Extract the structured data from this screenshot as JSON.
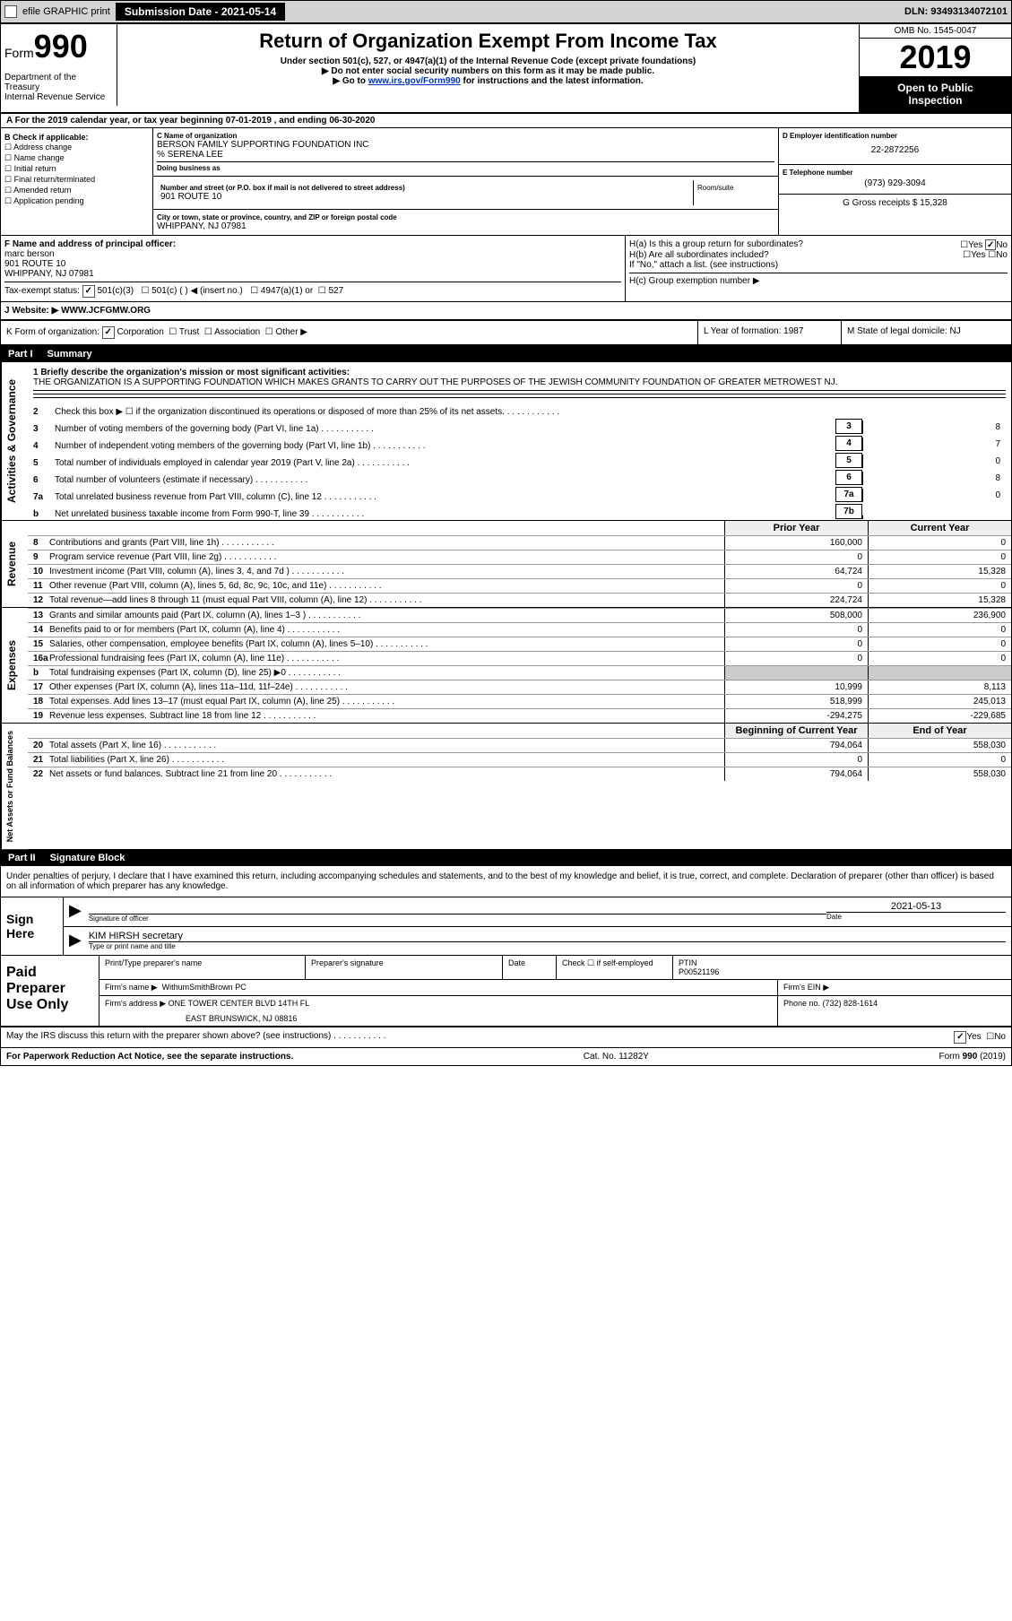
{
  "topbar": {
    "efile": "efile GRAPHIC print",
    "submission_label": "Submission Date - 2021-05-14",
    "dln": "DLN: 93493134072101"
  },
  "header": {
    "form_word": "Form",
    "form_no": "990",
    "title": "Return of Organization Exempt From Income Tax",
    "subtitle": "Under section 501(c), 527, or 4947(a)(1) of the Internal Revenue Code (except private foundations)",
    "arrow1": "▶ Do not enter social security numbers on this form as it may be made public.",
    "arrow2_pre": "▶ Go to ",
    "arrow2_link": "www.irs.gov/Form990",
    "arrow2_post": " for instructions and the latest information.",
    "omb": "OMB No. 1545-0047",
    "year": "2019",
    "open_public1": "Open to Public",
    "open_public2": "Inspection",
    "dept1": "Department of the Treasury",
    "dept2": "Internal Revenue Service"
  },
  "line_a": "A For the 2019 calendar year, or tax year beginning 07-01-2019    , and ending 06-30-2020",
  "col_b": {
    "heading": "B Check if applicable:",
    "items": [
      "Address change",
      "Name change",
      "Initial return",
      "Final return/terminated",
      "Amended return",
      "Application pending"
    ]
  },
  "box_c": {
    "label": "C Name of organization",
    "name": "BERSON FAMILY SUPPORTING FOUNDATION INC",
    "care_of": "% SERENA LEE",
    "dba_label": "Doing business as",
    "addr_label": "Number and street (or P.O. box if mail is not delivered to street address)",
    "room_label": "Room/suite",
    "addr": "901 ROUTE 10",
    "city_label": "City or town, state or province, country, and ZIP or foreign postal code",
    "city": "WHIPPANY, NJ  07981"
  },
  "box_d": {
    "label": "D Employer identification number",
    "val": "22-2872256"
  },
  "box_e": {
    "label": "E Telephone number",
    "val": "(973) 929-3094"
  },
  "box_g": {
    "label": "G Gross receipts $ 15,328"
  },
  "box_f": {
    "label": "F  Name and address of principal officer:",
    "name": "marc berson",
    "addr1": "901 ROUTE 10",
    "addr2": "WHIPPANY, NJ  07981"
  },
  "box_h": {
    "a": "H(a)  Is this a group return for subordinates?",
    "a_yes": "Yes",
    "a_no": "No",
    "b": "H(b)  Are all subordinates included?",
    "b_yes": "Yes",
    "b_no": "No",
    "b_note": "If \"No,\" attach a list. (see instructions)",
    "c": "H(c)  Group exemption number ▶"
  },
  "box_i": {
    "label": "Tax-exempt status:",
    "opt1": "501(c)(3)",
    "opt2": "501(c) (   ) ◀ (insert no.)",
    "opt3": "4947(a)(1) or",
    "opt4": "527"
  },
  "box_j": {
    "label": "J   Website: ▶",
    "val": "WWW.JCFGMW.ORG"
  },
  "box_k": {
    "label": "K Form of organization:",
    "opts": [
      "Corporation",
      "Trust",
      "Association",
      "Other ▶"
    ]
  },
  "box_l": {
    "label": "L Year of formation: 1987"
  },
  "box_m": {
    "label": "M State of legal domicile: NJ"
  },
  "part1": {
    "num": "Part I",
    "title": "Summary"
  },
  "mission": {
    "label": "1  Briefly describe the organization's mission or most significant activities:",
    "text": "THE ORGANIZATION IS A SUPPORTING FOUNDATION WHICH MAKES GRANTS TO CARRY OUT THE PURPOSES OF THE JEWISH COMMUNITY FOUNDATION OF GREATER METROWEST NJ."
  },
  "sidebar": {
    "ag": "Activities & Governance",
    "rev": "Revenue",
    "exp": "Expenses",
    "net": "Net Assets or Fund Balances"
  },
  "gov_lines": [
    {
      "n": "2",
      "t": "Check this box ▶ ☐  if the organization discontinued its operations or disposed of more than 25% of its net assets."
    },
    {
      "n": "3",
      "t": "Number of voting members of the governing body (Part VI, line 1a)",
      "box": "3",
      "v": "8"
    },
    {
      "n": "4",
      "t": "Number of independent voting members of the governing body (Part VI, line 1b)",
      "box": "4",
      "v": "7"
    },
    {
      "n": "5",
      "t": "Total number of individuals employed in calendar year 2019 (Part V, line 2a)",
      "box": "5",
      "v": "0"
    },
    {
      "n": "6",
      "t": "Total number of volunteers (estimate if necessary)",
      "box": "6",
      "v": "8"
    },
    {
      "n": "7a",
      "t": "Total unrelated business revenue from Part VIII, column (C), line 12",
      "box": "7a",
      "v": "0"
    },
    {
      "n": "b",
      "t": "Net unrelated business taxable income from Form 990-T, line 39",
      "box": "7b",
      "v": ""
    }
  ],
  "col_headers": {
    "prior": "Prior Year",
    "current": "Current Year"
  },
  "rev_lines": [
    {
      "n": "8",
      "t": "Contributions and grants (Part VIII, line 1h)",
      "p": "160,000",
      "c": "0"
    },
    {
      "n": "9",
      "t": "Program service revenue (Part VIII, line 2g)",
      "p": "0",
      "c": "0"
    },
    {
      "n": "10",
      "t": "Investment income (Part VIII, column (A), lines 3, 4, and 7d )",
      "p": "64,724",
      "c": "15,328"
    },
    {
      "n": "11",
      "t": "Other revenue (Part VIII, column (A), lines 5, 6d, 8c, 9c, 10c, and 11e)",
      "p": "0",
      "c": "0"
    },
    {
      "n": "12",
      "t": "Total revenue—add lines 8 through 11 (must equal Part VIII, column (A), line 12)",
      "p": "224,724",
      "c": "15,328"
    }
  ],
  "exp_lines": [
    {
      "n": "13",
      "t": "Grants and similar amounts paid (Part IX, column (A), lines 1–3 )",
      "p": "508,000",
      "c": "236,900"
    },
    {
      "n": "14",
      "t": "Benefits paid to or for members (Part IX, column (A), line 4)",
      "p": "0",
      "c": "0"
    },
    {
      "n": "15",
      "t": "Salaries, other compensation, employee benefits (Part IX, column (A), lines 5–10)",
      "p": "0",
      "c": "0"
    },
    {
      "n": "16a",
      "t": "Professional fundraising fees (Part IX, column (A), line 11e)",
      "p": "0",
      "c": "0"
    },
    {
      "n": "b",
      "t": "Total fundraising expenses (Part IX, column (D), line 25) ▶0",
      "p": "shaded",
      "c": "shaded"
    },
    {
      "n": "17",
      "t": "Other expenses (Part IX, column (A), lines 11a–11d, 11f–24e)",
      "p": "10,999",
      "c": "8,113"
    },
    {
      "n": "18",
      "t": "Total expenses. Add lines 13–17 (must equal Part IX, column (A), line 25)",
      "p": "518,999",
      "c": "245,013"
    },
    {
      "n": "19",
      "t": "Revenue less expenses. Subtract line 18 from line 12",
      "p": "-294,275",
      "c": "-229,685"
    }
  ],
  "net_headers": {
    "begin": "Beginning of Current Year",
    "end": "End of Year"
  },
  "net_lines": [
    {
      "n": "20",
      "t": "Total assets (Part X, line 16)",
      "p": "794,064",
      "c": "558,030"
    },
    {
      "n": "21",
      "t": "Total liabilities (Part X, line 26)",
      "p": "0",
      "c": "0"
    },
    {
      "n": "22",
      "t": "Net assets or fund balances. Subtract line 21 from line 20",
      "p": "794,064",
      "c": "558,030"
    }
  ],
  "part2": {
    "num": "Part II",
    "title": "Signature Block"
  },
  "sig": {
    "declaration": "Under penalties of perjury, I declare that I have examined this return, including accompanying schedules and statements, and to the best of my knowledge and belief, it is true, correct, and complete. Declaration of preparer (other than officer) is based on all information of which preparer has any knowledge.",
    "sign_here": "Sign Here",
    "sig_officer_label": "Signature of officer",
    "date_label": "Date",
    "date_val": "2021-05-13",
    "name": "KIM HIRSH secretary",
    "name_label": "Type or print name and title"
  },
  "prep": {
    "title": "Paid Preparer Use Only",
    "h_name": "Print/Type preparer's name",
    "h_sig": "Preparer's signature",
    "h_date": "Date",
    "h_check": "Check ☐ if self-employed",
    "h_ptin": "PTIN",
    "ptin": "P00521196",
    "firm_label": "Firm's name    ▶",
    "firm": "WithumSmithBrown PC",
    "ein_label": "Firm's EIN ▶",
    "addr_label": "Firm's address ▶",
    "addr1": "ONE TOWER CENTER BLVD 14TH FL",
    "addr2": "EAST BRUNSWICK, NJ  08816",
    "phone_label": "Phone no. (732) 828-1614",
    "discuss": "May the IRS discuss this return with the preparer shown above? (see instructions)",
    "yes": "Yes",
    "no": "No"
  },
  "footer": {
    "left": "For Paperwork Reduction Act Notice, see the separate instructions.",
    "mid": "Cat. No. 11282Y",
    "right": "Form 990 (2019)"
  }
}
